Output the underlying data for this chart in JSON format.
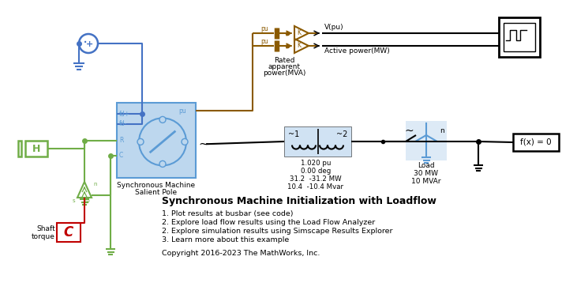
{
  "bg_color": "#ffffff",
  "blue": "#4472C4",
  "green": "#70AD47",
  "brown": "#7B3F00",
  "dark_red": "#C00000",
  "sm_blue": "#5B9BD5",
  "light_blue": "#BDD7EE",
  "black": "#000000",
  "title": "Synchronous Machine Initialization with Loadflow",
  "bullet1": "1. Plot results at busbar (see code)",
  "bullet2": "2. Explore load flow results using the Load Flow Analyzer",
  "bullet3": "2. Explore simulation results using Simscape Results Explorer",
  "bullet4": "3. Learn more about this example",
  "copyright": "Copyright 2016-2023 The MathWorks, Inc.",
  "sm_label1": "Synchronous Machine",
  "sm_label2": "Salient Pole",
  "shaft_label1": "Shaft",
  "shaft_label2": "torque",
  "load_label": "Load\n30 MW\n10 MVAr",
  "busbar_line1": "1.020 pu",
  "busbar_line2": "0.00 deg",
  "busbar_line3": "31.2  -31.2 MW",
  "busbar_line4": "10.4  -10.4 Mvar",
  "v_pu_label": "V(pu)",
  "active_power_label": "Active power(MW)",
  "rated_label1": "Rated",
  "rated_label2": "apparent",
  "rated_label3": "power(MVA)",
  "fx0_label": "f(x) = 0",
  "tilde1": "~1",
  "tilde2": "~2",
  "pu_label": "pu"
}
